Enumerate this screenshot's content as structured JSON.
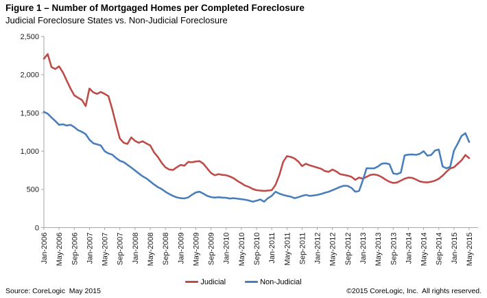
{
  "figure": {
    "title": "Figure 1 – Number of Mortgaged Homes per Completed Foreclosure",
    "subtitle": "Judicial Foreclosure States vs. Non-Judicial Foreclosure"
  },
  "chart_data": {
    "type": "line",
    "title": "Figure 1 – Number of Mortgaged Homes per Completed Foreclosure",
    "subtitle": "Judicial Foreclosure States vs. Non-Judicial Foreclosure",
    "x_unit": "month",
    "x_start": "Jan-2006",
    "x_end": "May-2015",
    "x_tick_every_n_months": 4,
    "x_tick_labels": [
      "Jan-2006",
      "May-2006",
      "Sep-2006",
      "Jan-2007",
      "May-2007",
      "Sep-2007",
      "Jan-2008",
      "May-2008",
      "Sep-2008",
      "Jan-2009",
      "May-2009",
      "Sep-2009",
      "Jan-2010",
      "May-2010",
      "Sep-2010",
      "Jan-2011",
      "May-2011",
      "Sep-2011",
      "Jan-2012",
      "May-2012",
      "Sep-2012",
      "Jan-2013",
      "May-2013",
      "Sep-2013",
      "Jan-2014",
      "May-2014",
      "Sep-2014",
      "Jan-2015",
      "May-2015"
    ],
    "ylim": [
      0,
      2500
    ],
    "y_tick_step": 500,
    "y_tick_labels": [
      "0",
      "500",
      "1,000",
      "1,500",
      "2,000",
      "2,500"
    ],
    "grid": false,
    "legend_position": "bottom-center",
    "axis_color": "#a6a6a6",
    "text_color": "#1a1a1a",
    "series": [
      {
        "name": "Judicial",
        "color": "#be4b48",
        "values": [
          2210,
          2270,
          2100,
          2075,
          2110,
          2030,
          1925,
          1820,
          1730,
          1700,
          1670,
          1590,
          1820,
          1770,
          1750,
          1775,
          1750,
          1720,
          1550,
          1350,
          1165,
          1110,
          1095,
          1180,
          1135,
          1110,
          1130,
          1100,
          1075,
          985,
          925,
          850,
          790,
          760,
          755,
          790,
          820,
          810,
          860,
          855,
          865,
          870,
          835,
          775,
          715,
          685,
          700,
          690,
          685,
          668,
          645,
          610,
          580,
          550,
          533,
          505,
          490,
          485,
          480,
          485,
          490,
          560,
          685,
          860,
          935,
          925,
          905,
          865,
          805,
          835,
          815,
          800,
          785,
          770,
          740,
          730,
          760,
          735,
          700,
          690,
          680,
          665,
          625,
          655,
          640,
          665,
          690,
          695,
          685,
          660,
          628,
          600,
          585,
          590,
          615,
          640,
          655,
          650,
          630,
          605,
          595,
          592,
          600,
          614,
          640,
          680,
          730,
          775,
          790,
          835,
          880,
          950,
          910
        ]
      },
      {
        "name": "Non-Judicial",
        "color": "#4a7ebb",
        "values": [
          1515,
          1490,
          1440,
          1395,
          1345,
          1352,
          1335,
          1345,
          1315,
          1275,
          1253,
          1223,
          1150,
          1104,
          1089,
          1074,
          1000,
          971,
          955,
          911,
          875,
          857,
          821,
          786,
          747,
          708,
          672,
          643,
          605,
          565,
          530,
          505,
          470,
          440,
          415,
          395,
          385,
          382,
          395,
          430,
          460,
          470,
          445,
          415,
          400,
          393,
          398,
          393,
          390,
          380,
          385,
          378,
          372,
          365,
          355,
          340,
          352,
          368,
          340,
          385,
          415,
          470,
          445,
          428,
          415,
          405,
          385,
          398,
          415,
          428,
          415,
          420,
          428,
          440,
          455,
          470,
          490,
          510,
          533,
          548,
          545,
          520,
          470,
          480,
          620,
          777,
          775,
          775,
          800,
          837,
          842,
          830,
          710,
          700,
          720,
          945,
          955,
          958,
          952,
          965,
          1000,
          941,
          950,
          1009,
          1021,
          800,
          775,
          795,
          1010,
          1100,
          1200,
          1235,
          1120
        ]
      }
    ]
  },
  "legend": {
    "items": [
      {
        "label": "Judicial",
        "color": "#be4b48"
      },
      {
        "label": "Non-Judicial",
        "color": "#4a7ebb"
      }
    ]
  },
  "footer": {
    "source": "Source: CoreLogic  May 2015",
    "copyright": "©2015 CoreLogic, Inc.  All rights reserved."
  }
}
